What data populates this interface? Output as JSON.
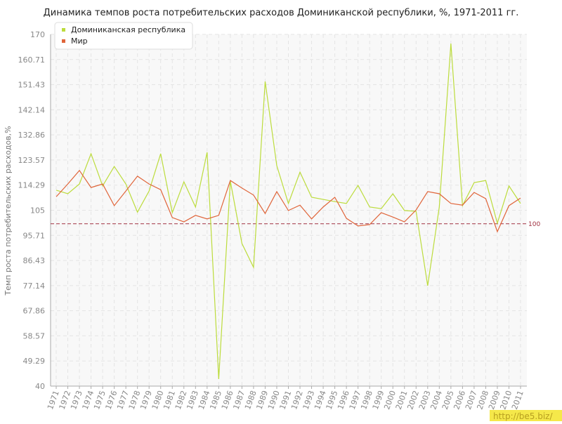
{
  "chart_data": {
    "type": "line",
    "title": "Динамика темпов роста потребительских расходов Доминиканской республики, %, 1971-2011 гг.",
    "y_label": "Темп роста потребительских расходов,%",
    "categories": [
      "1971",
      "1972",
      "1973",
      "1974",
      "1975",
      "1976",
      "1977",
      "1978",
      "1979",
      "1980",
      "1981",
      "1982",
      "1983",
      "1984",
      "1985",
      "1986",
      "1987",
      "1988",
      "1989",
      "1990",
      "1991",
      "1992",
      "1993",
      "1994",
      "1995",
      "1996",
      "1997",
      "1998",
      "1999",
      "2000",
      "2001",
      "2002",
      "2003",
      "2004",
      "2005",
      "2006",
      "2007",
      "2008",
      "2009",
      "2010",
      "2011"
    ],
    "series": [
      {
        "name": "Доминиканская республика",
        "color": "#bcdc3c",
        "values": [
          112.4,
          111.1,
          114.7,
          125.9,
          114,
          121.2,
          114.7,
          104.3,
          112.1,
          125.9,
          104.1,
          115.5,
          106.2,
          126.4,
          42.6,
          115.8,
          92.7,
          83.9,
          152.6,
          121.5,
          107.5,
          119.1,
          109.8,
          109,
          108.2,
          107.5,
          114.2,
          106.2,
          105.6,
          111.1,
          104.9,
          104.6,
          77.1,
          106.2,
          166.6,
          106.7,
          115.2,
          116,
          100.2,
          114,
          107.5
        ]
      },
      {
        "name": "Мир",
        "color": "#e0653a",
        "values": [
          110,
          114.7,
          119.7,
          113.4,
          114.7,
          106.7,
          112.1,
          117.6,
          114.7,
          112.6,
          102.3,
          100.7,
          103.1,
          101.8,
          103.1,
          116,
          113.2,
          110.6,
          103.8,
          111.9,
          104.9,
          106.9,
          101.8,
          106.2,
          109.8,
          102,
          99.2,
          99.7,
          104.1,
          102.5,
          100.7,
          105.1,
          111.9,
          111.1,
          107.5,
          106.9,
          111.6,
          109.3,
          97.1,
          106.7,
          109.5
        ]
      }
    ],
    "ylim": [
      40,
      170
    ],
    "yticks": [
      40,
      49.29,
      58.57,
      67.86,
      77.14,
      86.43,
      95.71,
      105,
      114.29,
      123.57,
      132.86,
      142.14,
      151.43,
      160.71,
      170
    ],
    "reference_line": 100,
    "reference_color": "#a03040",
    "grid": true,
    "legend": "top-left",
    "watermark": "http://be5.biz/"
  }
}
